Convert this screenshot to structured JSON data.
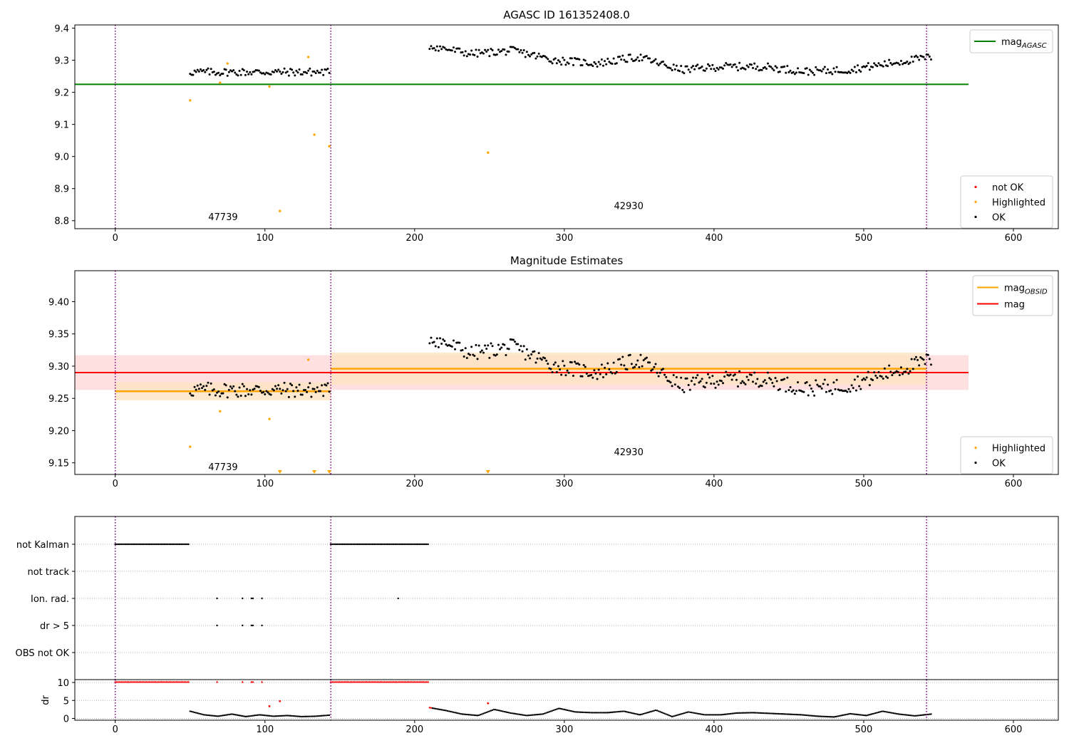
{
  "colors": {
    "ok": "#000000",
    "highlighted": "#ffa500",
    "not_ok": "#ff0000",
    "mag_agasc": "#008000",
    "mag": "#ff0000",
    "mag_obsid": "#ffa500",
    "boundary": "#800080",
    "band_mag": "#ffd6d6",
    "band_obsid": "#ffe3c2"
  },
  "chart_data": [
    {
      "type": "scatter",
      "title": "AGASC ID 161352408.0",
      "xlim": [
        -27,
        630
      ],
      "ylim": [
        8.775,
        9.41
      ],
      "xticks": [
        0,
        100,
        200,
        300,
        400,
        500,
        600
      ],
      "yticks": [
        8.8,
        8.9,
        9.0,
        9.1,
        9.2,
        9.3,
        9.4
      ],
      "ytick_labels": [
        "8.8",
        "8.9",
        "9.0",
        "9.1",
        "9.2",
        "9.3",
        "9.4"
      ],
      "obsid_boundaries": [
        0,
        144,
        542
      ],
      "obsid_labels": [
        {
          "text": "47739",
          "x": 72,
          "y": 8.81
        },
        {
          "text": "42930",
          "x": 343,
          "y": 8.845
        }
      ],
      "mag_agasc": {
        "value": 9.225,
        "x_range": [
          -27,
          570
        ]
      },
      "ok_segments": [
        {
          "x_start": 50,
          "x_end": 143,
          "level": 9.263,
          "spread": 0.012
        },
        {
          "x_start": 210,
          "x_end": 545,
          "levels": [
            9.345,
            9.32,
            9.33,
            9.3,
            9.29,
            9.31,
            9.27,
            9.28,
            9.28,
            9.265,
            9.27,
            9.29,
            9.31
          ],
          "spread": 0.012
        }
      ],
      "highlighted_points": [
        {
          "x": 50,
          "y": 9.175
        },
        {
          "x": 70,
          "y": 9.23
        },
        {
          "x": 75,
          "y": 9.29
        },
        {
          "x": 103,
          "y": 9.218
        },
        {
          "x": 110,
          "y": 8.83
        },
        {
          "x": 129,
          "y": 9.31
        },
        {
          "x": 133,
          "y": 9.068
        },
        {
          "x": 143,
          "y": 9.032
        },
        {
          "x": 249,
          "y": 9.012
        }
      ],
      "legends": [
        {
          "position": "upper-right",
          "entries": [
            {
              "label": "mag",
              "subscript": "AGASC",
              "kind": "line",
              "color_key": "mag_agasc"
            }
          ]
        },
        {
          "position": "lower-right",
          "entries": [
            {
              "label": "not OK",
              "kind": "dot",
              "color_key": "not_ok"
            },
            {
              "label": "Highlighted",
              "kind": "dot",
              "color_key": "highlighted"
            },
            {
              "label": "OK",
              "kind": "dot",
              "color_key": "ok"
            }
          ]
        }
      ]
    },
    {
      "type": "scatter",
      "title": "Magnitude Estimates",
      "xlim": [
        -27,
        630
      ],
      "ylim": [
        9.132,
        9.448
      ],
      "xticks": [
        0,
        100,
        200,
        300,
        400,
        500,
        600
      ],
      "yticks": [
        9.15,
        9.2,
        9.25,
        9.3,
        9.35,
        9.4
      ],
      "ytick_labels": [
        "9.15",
        "9.20",
        "9.25",
        "9.30",
        "9.35",
        "9.40"
      ],
      "obsid_boundaries": [
        0,
        144,
        542
      ],
      "obsid_labels": [
        {
          "text": "47739",
          "x": 72,
          "y": 9.143
        },
        {
          "text": "42930",
          "x": 343,
          "y": 9.166
        }
      ],
      "mag": {
        "value": 9.29,
        "band": [
          9.263,
          9.317
        ],
        "x_range": [
          -27,
          570
        ]
      },
      "mag_obsid": [
        {
          "x_range": [
            0,
            144
          ],
          "value": 9.261,
          "band": [
            9.247,
            9.275
          ]
        },
        {
          "x_range": [
            144,
            542
          ],
          "value": 9.296,
          "band": [
            9.271,
            9.321
          ]
        }
      ],
      "ok_segments": [
        {
          "x_start": 50,
          "x_end": 143,
          "level": 9.263,
          "spread": 0.012
        },
        {
          "x_start": 210,
          "x_end": 545,
          "levels": [
            9.345,
            9.32,
            9.33,
            9.3,
            9.29,
            9.31,
            9.27,
            9.28,
            9.28,
            9.265,
            9.27,
            9.29,
            9.31
          ],
          "spread": 0.012
        }
      ],
      "highlighted_points": [
        {
          "x": 50,
          "y": 9.175
        },
        {
          "x": 70,
          "y": 9.23
        },
        {
          "x": 103,
          "y": 9.218
        },
        {
          "x": 129,
          "y": 9.31
        }
      ],
      "out_of_range_markers_x": [
        110,
        133,
        143,
        249
      ],
      "legends": [
        {
          "position": "upper-right",
          "entries": [
            {
              "label": "mag",
              "subscript": "OBSID",
              "kind": "line",
              "color_key": "mag_obsid"
            },
            {
              "label": "mag",
              "kind": "line",
              "color_key": "mag"
            }
          ]
        },
        {
          "position": "lower-right",
          "entries": [
            {
              "label": "Highlighted",
              "kind": "dot",
              "color_key": "highlighted"
            },
            {
              "label": "OK",
              "kind": "dot",
              "color_key": "ok"
            }
          ]
        }
      ]
    },
    {
      "type": "scatter",
      "title": "",
      "xlim": [
        -27,
        630
      ],
      "categories": [
        "not Kalman",
        "not track",
        "Ion. rad.",
        "dr > 5",
        "OBS not OK"
      ],
      "obsid_boundaries": [
        0,
        144,
        542
      ],
      "flag_ranges": {
        "not Kalman": [
          [
            0,
            49
          ],
          [
            144,
            209
          ]
        ],
        "not track": [],
        "Ion. rad.": [
          [
            68,
            68
          ],
          [
            85,
            85
          ],
          [
            91,
            92
          ],
          [
            98,
            98
          ],
          [
            189,
            189
          ]
        ],
        "dr > 5": [
          [
            68,
            68
          ],
          [
            85,
            85
          ],
          [
            91,
            92
          ],
          [
            98,
            98
          ]
        ],
        "OBS not OK": []
      }
    },
    {
      "type": "scatter",
      "title": "",
      "ylabel": "dr",
      "xlim": [
        -27,
        630
      ],
      "ylim": [
        -0.5,
        10.8
      ],
      "xticks": [
        0,
        100,
        200,
        300,
        400,
        500,
        600
      ],
      "yticks": [
        0,
        5,
        10
      ],
      "ytick_labels": [
        "0",
        "5",
        "10"
      ],
      "obsid_boundaries": [
        0,
        144,
        542
      ],
      "red_at_limit_ranges": [
        [
          0,
          49
        ],
        [
          68,
          68
        ],
        [
          85,
          85
        ],
        [
          91,
          92
        ],
        [
          98,
          98
        ],
        [
          144,
          209
        ]
      ],
      "red_points": [
        {
          "x": 103,
          "y": 3.4
        },
        {
          "x": 110,
          "y": 4.8
        },
        {
          "x": 249,
          "y": 4.2
        }
      ],
      "dr_segments": [
        {
          "x_start": 50,
          "x_end": 143,
          "values": [
            2.0,
            1.0,
            0.6,
            1.2,
            0.5,
            1.0,
            0.6,
            0.8,
            0.5,
            0.6,
            0.9
          ]
        },
        {
          "x_start": 210,
          "x_end": 545,
          "values": [
            3.0,
            2.2,
            1.2,
            0.8,
            2.5,
            1.5,
            0.8,
            1.2,
            2.8,
            1.8,
            1.6,
            1.6,
            2.0,
            1.0,
            2.3,
            0.5,
            1.8,
            1.0,
            1.0,
            1.5,
            1.6,
            1.4,
            1.2,
            1.0,
            0.6,
            0.4,
            1.3,
            0.8,
            2.0,
            1.2,
            0.7,
            1.2
          ]
        }
      ]
    }
  ]
}
